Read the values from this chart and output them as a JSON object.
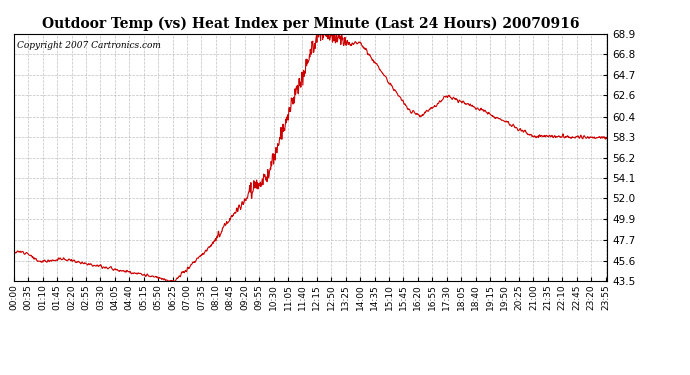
{
  "title": "Outdoor Temp (vs) Heat Index per Minute (Last 24 Hours) 20070916",
  "copyright": "Copyright 2007 Cartronics.com",
  "line_color": "#cc0000",
  "background_color": "#ffffff",
  "grid_color": "#b0b0b0",
  "ylim": [
    43.5,
    68.9
  ],
  "yticks": [
    43.5,
    45.6,
    47.7,
    49.9,
    52.0,
    54.1,
    56.2,
    58.3,
    60.4,
    62.6,
    64.7,
    66.8,
    68.9
  ],
  "tick_interval_minutes": 35,
  "total_minutes": 1440
}
